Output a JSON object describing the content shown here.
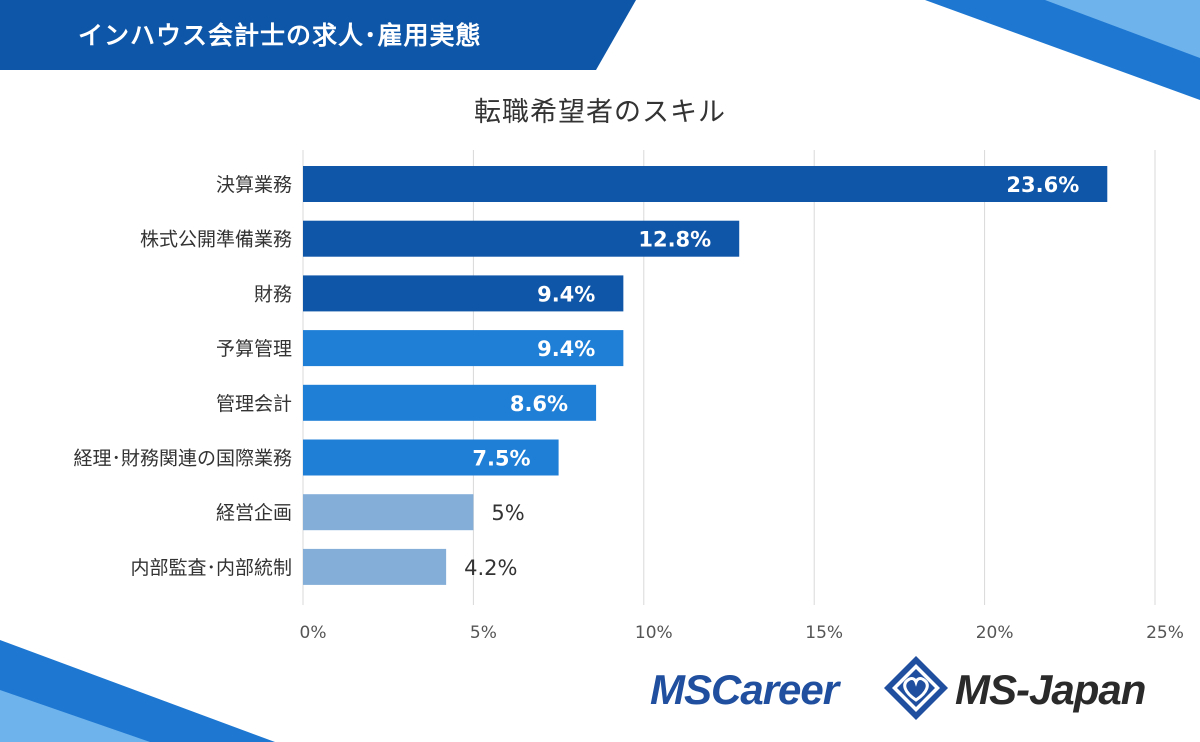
{
  "header": {
    "title": "インハウス会計士の求人･雇用実態"
  },
  "colors": {
    "banner": "#0d56a8",
    "dark_bar": "#0f56a8",
    "mid_bar": "#1f7fd6",
    "light_bar": "#84aed8",
    "grid": "#d9d9d9"
  },
  "chart_data": {
    "type": "bar",
    "orientation": "horizontal",
    "title": "転職希望者のスキル",
    "categories": [
      "決算業務",
      "株式公開準備業務",
      "財務",
      "予算管理",
      "管理会計",
      "経理･財務関連の国際業務",
      "経営企画",
      "内部監査･内部統制"
    ],
    "values": [
      23.6,
      12.8,
      9.4,
      9.4,
      8.6,
      7.5,
      5,
      4.2
    ],
    "data_labels": [
      "23.6%",
      "12.8%",
      "9.4%",
      "9.4%",
      "8.6%",
      "7.5%",
      "5%",
      "4.2%"
    ],
    "bar_colors": [
      "#0f56a8",
      "#0f56a8",
      "#0f56a8",
      "#1f7fd6",
      "#1f7fd6",
      "#1f7fd6",
      "#84aed8",
      "#84aed8"
    ],
    "xlim": [
      0,
      25
    ],
    "xticks": [
      0,
      5,
      10,
      15,
      20,
      25
    ],
    "xtick_labels": [
      "0%",
      "5%",
      "10%",
      "15%",
      "20%",
      "25%"
    ],
    "grid": true,
    "legend": "none"
  },
  "logos": {
    "left": "MSCareer",
    "right": "MS-Japan",
    "mark_icon": "heart-diamond-icon"
  }
}
